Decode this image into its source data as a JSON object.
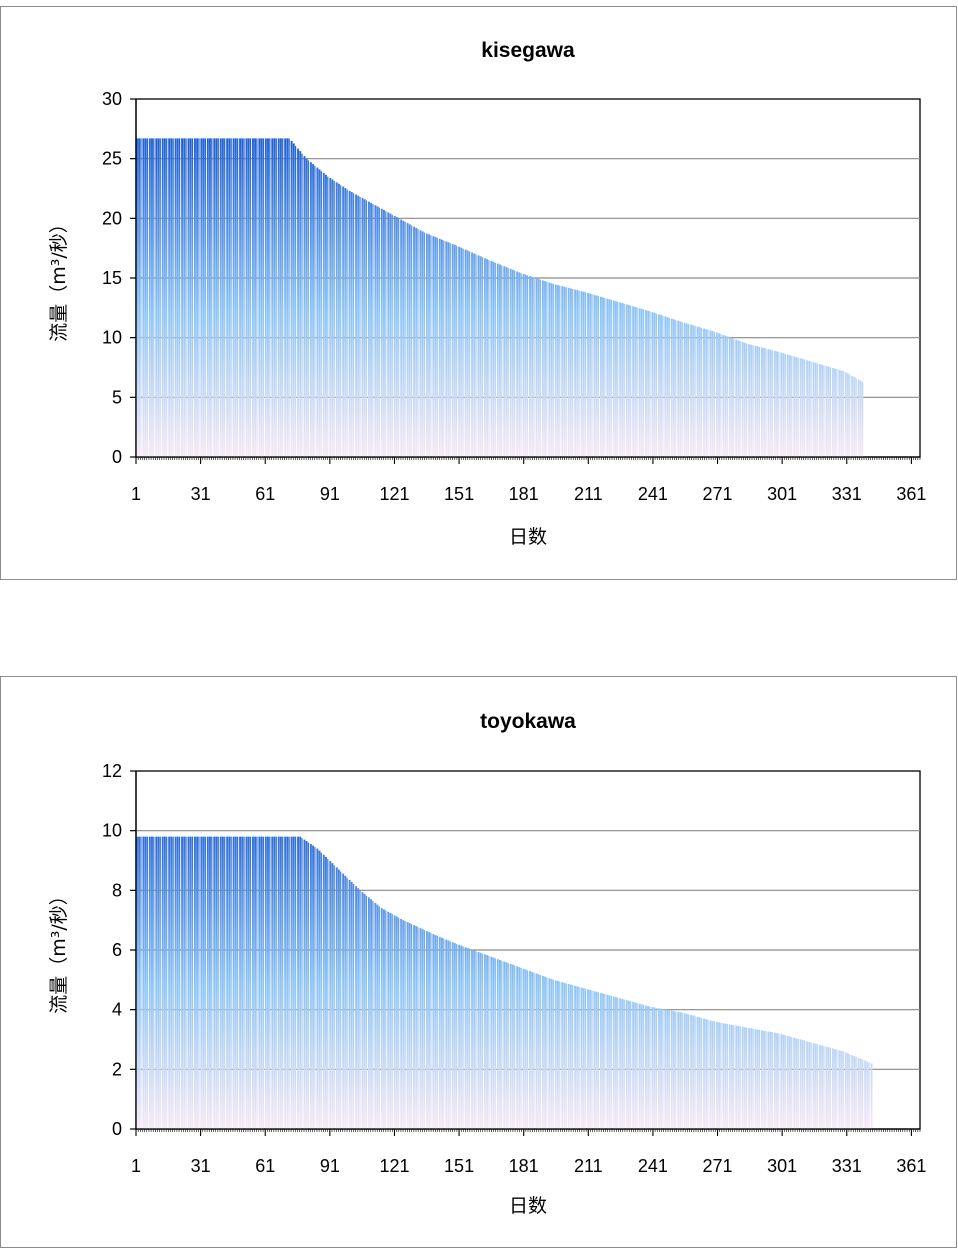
{
  "chart_data": [
    {
      "type": "bar",
      "title": "kisegawa",
      "xlabel": "日数",
      "ylabel": "流量（m³/秒）",
      "ylim": [
        0,
        30
      ],
      "yticks": [
        0,
        5,
        10,
        15,
        20,
        25,
        30
      ],
      "xticks": [
        1,
        31,
        61,
        91,
        121,
        151,
        181,
        211,
        241,
        271,
        301,
        331,
        361
      ],
      "xlim": [
        1,
        365
      ],
      "grid": true,
      "bar_color_top": "#1f5fd0",
      "bar_color_mid": "#8ec4f5",
      "bar_color_bottom": "#f6e9f6",
      "series_points": [
        [
          1,
          26.7
        ],
        [
          60,
          26.7
        ],
        [
          72,
          26.7
        ],
        [
          80,
          25.0
        ],
        [
          90,
          23.5
        ],
        [
          100,
          22.3
        ],
        [
          110,
          21.3
        ],
        [
          120,
          20.3
        ],
        [
          135,
          18.8
        ],
        [
          150,
          17.7
        ],
        [
          165,
          16.5
        ],
        [
          180,
          15.4
        ],
        [
          195,
          14.5
        ],
        [
          210,
          13.8
        ],
        [
          225,
          13.0
        ],
        [
          240,
          12.2
        ],
        [
          255,
          11.3
        ],
        [
          270,
          10.5
        ],
        [
          285,
          9.5
        ],
        [
          300,
          8.8
        ],
        [
          315,
          8.0
        ],
        [
          330,
          7.2
        ],
        [
          339,
          6.3
        ]
      ],
      "n_days": 339
    },
    {
      "type": "bar",
      "title": "toyokawa",
      "xlabel": "日数",
      "ylabel": "流量（m³/秒）",
      "ylim": [
        0,
        12
      ],
      "yticks": [
        0,
        2,
        4,
        6,
        8,
        10,
        12
      ],
      "xticks": [
        1,
        31,
        61,
        91,
        121,
        151,
        181,
        211,
        241,
        271,
        301,
        331,
        361
      ],
      "xlim": [
        1,
        365
      ],
      "grid": true,
      "bar_color_top": "#1f5fd0",
      "bar_color_mid": "#8ec4f5",
      "bar_color_bottom": "#f6e9f6",
      "series_points": [
        [
          1,
          9.8
        ],
        [
          60,
          9.8
        ],
        [
          77,
          9.8
        ],
        [
          85,
          9.4
        ],
        [
          95,
          8.7
        ],
        [
          105,
          8.0
        ],
        [
          115,
          7.4
        ],
        [
          125,
          7.0
        ],
        [
          140,
          6.5
        ],
        [
          150,
          6.2
        ],
        [
          165,
          5.8
        ],
        [
          180,
          5.4
        ],
        [
          195,
          5.0
        ],
        [
          210,
          4.7
        ],
        [
          225,
          4.4
        ],
        [
          240,
          4.1
        ],
        [
          255,
          3.9
        ],
        [
          270,
          3.6
        ],
        [
          285,
          3.4
        ],
        [
          300,
          3.2
        ],
        [
          315,
          2.9
        ],
        [
          330,
          2.6
        ],
        [
          343,
          2.2
        ]
      ],
      "n_days": 343
    }
  ]
}
